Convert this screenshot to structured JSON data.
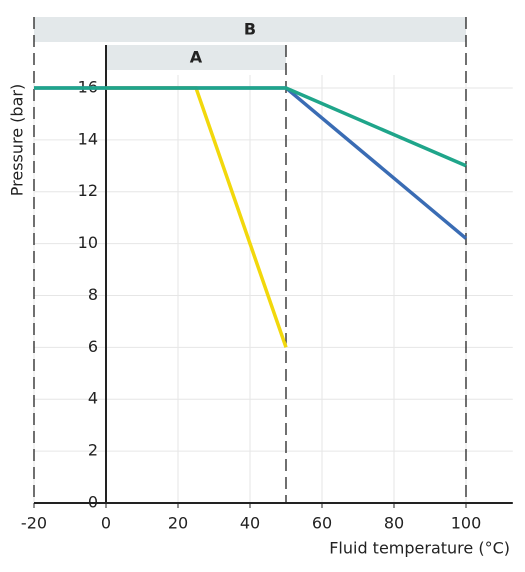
{
  "chart_data": {
    "type": "line",
    "x_label": "Fluid temperature (°C)",
    "y_label": "Pressure (bar)",
    "xlim": [
      -20,
      113
    ],
    "ylim": [
      0,
      16.5
    ],
    "xticks": [
      -20,
      0,
      20,
      40,
      60,
      80,
      100
    ],
    "yticks": [
      0,
      2,
      4,
      6,
      8,
      10,
      12,
      14,
      16
    ],
    "grid": true,
    "bands": [
      {
        "label": "B",
        "range": [
          -20,
          100
        ]
      },
      {
        "label": "A",
        "range": [
          0,
          50
        ]
      }
    ],
    "series": [
      {
        "color": "#f2d80c",
        "x": [
          0,
          25,
          50
        ],
        "values": [
          16,
          16,
          6
        ]
      },
      {
        "color": "#3a6cb4",
        "x": [
          -20,
          50,
          100
        ],
        "values": [
          16,
          16,
          10.2
        ]
      },
      {
        "color": "#1fa58a",
        "x": [
          -20,
          50,
          100
        ],
        "values": [
          16,
          16,
          13
        ]
      }
    ]
  }
}
